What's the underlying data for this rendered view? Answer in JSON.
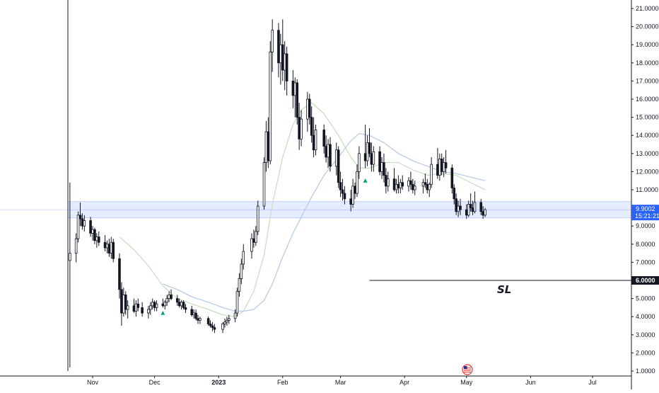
{
  "chart_data": {
    "type": "candlestick",
    "y_axis": {
      "ticks": [
        "21.0000",
        "20.0000",
        "19.0000",
        "18.0000",
        "17.0000",
        "16.0000",
        "15.0000",
        "14.0000",
        "13.0000",
        "12.0000",
        "11.0000",
        "9.0000",
        "8.0000",
        "7.0000",
        "5.0000",
        "4.0000",
        "3.0000",
        "2.0000",
        "1.0000"
      ],
      "tick_values": [
        21,
        20,
        19,
        18,
        17,
        16,
        15,
        14,
        13,
        12,
        11,
        9,
        8,
        7,
        5,
        4,
        3,
        2,
        1
      ],
      "range": [
        0.9,
        21.4
      ],
      "position": "right"
    },
    "x_axis": {
      "labels": [
        "Nov",
        "Dec",
        "2023",
        "Feb",
        "Mar",
        "Apr",
        "May",
        "Jun",
        "Jul"
      ],
      "bold_labels": [
        "2023"
      ],
      "dates": [
        "2022-11-01",
        "2022-12-01",
        "2023-01-01",
        "2023-02-01",
        "2023-03-01",
        "2023-04-01",
        "2023-05-01",
        "2023-06-01",
        "2023-07-01"
      ]
    },
    "last_price": {
      "value": 9.9002,
      "label": "9.9002",
      "countdown": "15:21:21",
      "color": "#2962ff"
    },
    "stop_loss": {
      "value": 6.0,
      "label": "6.0000",
      "text": "SL",
      "start_date": "2023-03-15",
      "color": "#131722"
    },
    "support_zone": {
      "from": 9.45,
      "to": 10.35,
      "color": "#2962ff"
    },
    "candles": [
      [
        "2022-10-21",
        7.1,
        11.4,
        1.2,
        7.5
      ],
      [
        "2022-10-24",
        7.5,
        8.6,
        7.0,
        8.3
      ],
      [
        "2022-10-25",
        8.3,
        9.8,
        8.1,
        9.6
      ],
      [
        "2022-10-26",
        9.6,
        10.3,
        9.0,
        9.4
      ],
      [
        "2022-10-27",
        9.4,
        9.7,
        8.8,
        9.0
      ],
      [
        "2022-10-28",
        9.0,
        9.6,
        8.7,
        9.3
      ],
      [
        "2022-10-31",
        9.3,
        9.5,
        8.4,
        8.6
      ],
      [
        "2022-11-01",
        8.6,
        9.0,
        8.2,
        8.8
      ],
      [
        "2022-11-02",
        8.8,
        8.9,
        8.0,
        8.2
      ],
      [
        "2022-11-03",
        8.2,
        8.6,
        7.8,
        8.4
      ],
      [
        "2022-11-04",
        8.4,
        8.7,
        7.9,
        8.1
      ],
      [
        "2022-11-07",
        8.1,
        8.5,
        7.6,
        7.8
      ],
      [
        "2022-11-08",
        7.8,
        8.2,
        7.5,
        8.0
      ],
      [
        "2022-11-09",
        8.0,
        8.3,
        7.3,
        7.5
      ],
      [
        "2022-11-10",
        7.5,
        8.4,
        7.2,
        8.1
      ],
      [
        "2022-11-11",
        8.1,
        8.3,
        7.0,
        7.2
      ],
      [
        "2022-11-14",
        7.2,
        7.5,
        5.0,
        5.5
      ],
      [
        "2022-11-15",
        5.5,
        5.9,
        3.5,
        4.2
      ],
      [
        "2022-11-16",
        4.2,
        5.6,
        4.0,
        5.2
      ],
      [
        "2022-11-17",
        5.2,
        5.4,
        4.1,
        4.4
      ],
      [
        "2022-11-18",
        4.4,
        4.9,
        3.9,
        4.6
      ],
      [
        "2022-11-21",
        4.6,
        5.0,
        4.2,
        4.3
      ],
      [
        "2022-11-22",
        4.3,
        4.9,
        4.0,
        4.7
      ],
      [
        "2022-11-23",
        4.7,
        5.0,
        4.3,
        4.5
      ],
      [
        "2022-11-25",
        4.5,
        4.8,
        4.0,
        4.2
      ],
      [
        "2022-11-28",
        4.2,
        4.6,
        3.9,
        4.4
      ],
      [
        "2022-11-29",
        4.4,
        4.8,
        4.1,
        4.6
      ],
      [
        "2022-11-30",
        4.6,
        5.0,
        4.4,
        4.8
      ],
      [
        "2022-12-01",
        4.8,
        4.9,
        4.3,
        4.5
      ],
      [
        "2022-12-02",
        4.5,
        4.9,
        4.3,
        4.7
      ],
      [
        "2022-12-05",
        4.7,
        5.0,
        4.5,
        4.6
      ],
      [
        "2022-12-06",
        4.6,
        4.9,
        4.4,
        4.8
      ],
      [
        "2022-12-07",
        4.8,
        5.2,
        4.6,
        5.0
      ],
      [
        "2022-12-08",
        5.0,
        5.4,
        4.8,
        5.2
      ],
      [
        "2022-12-09",
        5.2,
        5.5,
        4.9,
        5.0
      ],
      [
        "2022-12-12",
        5.0,
        5.2,
        4.6,
        4.8
      ],
      [
        "2022-12-13",
        4.8,
        5.0,
        4.5,
        4.6
      ],
      [
        "2022-12-14",
        4.6,
        4.9,
        4.4,
        4.8
      ],
      [
        "2022-12-15",
        4.8,
        4.9,
        4.4,
        4.5
      ],
      [
        "2022-12-16",
        4.5,
        4.7,
        4.2,
        4.4
      ],
      [
        "2022-12-19",
        4.4,
        4.6,
        4.0,
        4.1
      ],
      [
        "2022-12-20",
        4.1,
        4.4,
        3.9,
        4.2
      ],
      [
        "2022-12-21",
        4.2,
        4.4,
        3.8,
        3.9
      ],
      [
        "2022-12-22",
        3.9,
        4.1,
        3.6,
        3.8
      ],
      [
        "2022-12-23",
        3.8,
        4.0,
        3.6,
        3.9
      ],
      [
        "2022-12-27",
        3.9,
        4.0,
        3.5,
        3.6
      ],
      [
        "2022-12-28",
        3.6,
        3.8,
        3.4,
        3.5
      ],
      [
        "2022-12-29",
        3.5,
        3.7,
        3.2,
        3.4
      ],
      [
        "2022-12-30",
        3.4,
        3.6,
        3.1,
        3.3
      ],
      [
        "2023-01-03",
        3.3,
        3.7,
        3.1,
        3.6
      ],
      [
        "2023-01-04",
        3.6,
        3.9,
        3.4,
        3.7
      ],
      [
        "2023-01-05",
        3.7,
        4.0,
        3.5,
        3.8
      ],
      [
        "2023-01-06",
        3.8,
        4.1,
        3.6,
        3.9
      ],
      [
        "2023-01-09",
        3.9,
        4.4,
        3.7,
        4.2
      ],
      [
        "2023-01-10",
        4.2,
        5.6,
        4.0,
        5.4
      ],
      [
        "2023-01-11",
        5.4,
        6.4,
        5.1,
        6.1
      ],
      [
        "2023-01-12",
        6.1,
        7.2,
        5.8,
        6.9
      ],
      [
        "2023-01-13",
        6.9,
        8.0,
        6.6,
        7.6
      ],
      [
        "2023-01-17",
        7.6,
        8.6,
        7.2,
        8.3
      ],
      [
        "2023-01-18",
        8.3,
        8.8,
        7.8,
        8.1
      ],
      [
        "2023-01-19",
        8.1,
        9.0,
        7.9,
        8.7
      ],
      [
        "2023-01-20",
        8.7,
        10.4,
        8.5,
        10.1
      ],
      [
        "2023-01-23",
        10.1,
        12.8,
        9.9,
        12.5
      ],
      [
        "2023-01-24",
        12.5,
        14.8,
        12.0,
        14.2
      ],
      [
        "2023-01-25",
        14.2,
        15.0,
        12.2,
        12.6
      ],
      [
        "2023-01-26",
        12.6,
        19.2,
        12.4,
        18.6
      ],
      [
        "2023-01-27",
        18.6,
        20.4,
        17.5,
        19.8
      ],
      [
        "2023-01-30",
        19.8,
        20.2,
        17.2,
        18.0
      ],
      [
        "2023-01-31",
        18.0,
        19.6,
        16.8,
        19.0
      ],
      [
        "2023-02-01",
        19.0,
        20.4,
        17.0,
        17.6
      ],
      [
        "2023-02-02",
        17.6,
        19.2,
        16.5,
        18.5
      ],
      [
        "2023-02-03",
        18.5,
        18.9,
        16.2,
        17.0
      ],
      [
        "2023-02-06",
        17.0,
        17.6,
        15.5,
        16.2
      ],
      [
        "2023-02-07",
        16.2,
        17.2,
        15.0,
        16.9
      ],
      [
        "2023-02-08",
        16.9,
        17.1,
        14.6,
        15.0
      ],
      [
        "2023-02-09",
        15.0,
        15.8,
        13.2,
        13.8
      ],
      [
        "2023-02-10",
        13.8,
        15.4,
        13.4,
        14.9
      ],
      [
        "2023-02-13",
        14.9,
        16.4,
        14.2,
        16.0
      ],
      [
        "2023-02-14",
        16.0,
        16.3,
        14.6,
        15.0
      ],
      [
        "2023-02-15",
        15.0,
        15.6,
        13.6,
        14.0
      ],
      [
        "2023-02-16",
        14.0,
        15.0,
        12.8,
        13.2
      ],
      [
        "2023-02-17",
        13.2,
        14.6,
        12.9,
        14.3
      ],
      [
        "2023-02-21",
        14.3,
        14.6,
        13.0,
        13.4
      ],
      [
        "2023-02-22",
        13.4,
        14.0,
        12.5,
        12.8
      ],
      [
        "2023-02-23",
        12.8,
        13.8,
        12.2,
        13.5
      ],
      [
        "2023-02-24",
        13.5,
        13.9,
        12.0,
        12.3
      ],
      [
        "2023-02-27",
        12.3,
        13.6,
        11.8,
        13.2
      ],
      [
        "2023-02-28",
        13.2,
        13.4,
        11.1,
        11.4
      ],
      [
        "2023-03-01",
        11.4,
        12.0,
        10.6,
        11.0
      ],
      [
        "2023-03-02",
        11.0,
        11.6,
        10.4,
        10.8
      ],
      [
        "2023-03-03",
        10.8,
        11.2,
        10.2,
        10.5
      ],
      [
        "2023-03-06",
        10.5,
        11.0,
        9.8,
        10.2
      ],
      [
        "2023-03-07",
        10.2,
        11.6,
        10.0,
        11.2
      ],
      [
        "2023-03-08",
        11.2,
        11.4,
        10.5,
        10.8
      ],
      [
        "2023-03-09",
        10.8,
        12.4,
        10.6,
        12.0
      ],
      [
        "2023-03-10",
        12.0,
        13.4,
        11.6,
        13.0
      ],
      [
        "2023-03-13",
        13.0,
        14.6,
        12.2,
        12.6
      ],
      [
        "2023-03-14",
        12.6,
        14.0,
        12.3,
        13.6
      ],
      [
        "2023-03-15",
        13.6,
        14.4,
        12.8,
        13.0
      ],
      [
        "2023-03-16",
        13.0,
        13.6,
        12.0,
        12.4
      ],
      [
        "2023-03-17",
        12.4,
        13.4,
        12.0,
        13.1
      ],
      [
        "2023-03-20",
        13.1,
        13.4,
        11.8,
        12.0
      ],
      [
        "2023-03-21",
        12.0,
        12.8,
        11.6,
        12.5
      ],
      [
        "2023-03-22",
        12.5,
        13.0,
        11.4,
        11.8
      ],
      [
        "2023-03-23",
        11.8,
        12.2,
        10.8,
        11.2
      ],
      [
        "2023-03-24",
        11.2,
        12.0,
        10.9,
        11.6
      ],
      [
        "2023-03-27",
        11.6,
        12.2,
        10.9,
        11.0
      ],
      [
        "2023-03-28",
        11.0,
        11.6,
        10.8,
        11.3
      ],
      [
        "2023-03-29",
        11.3,
        11.8,
        10.8,
        11.1
      ],
      [
        "2023-03-30",
        11.1,
        11.6,
        10.8,
        11.4
      ],
      [
        "2023-03-31",
        11.4,
        11.8,
        11.0,
        11.2
      ],
      [
        "2023-04-03",
        11.2,
        11.7,
        10.9,
        11.5
      ],
      [
        "2023-04-04",
        11.5,
        12.0,
        11.0,
        11.3
      ],
      [
        "2023-04-05",
        11.3,
        11.6,
        10.8,
        11.0
      ],
      [
        "2023-04-06",
        11.0,
        11.5,
        10.7,
        11.2
      ],
      [
        "2023-04-10",
        11.2,
        11.6,
        10.8,
        11.4
      ],
      [
        "2023-04-11",
        11.4,
        11.9,
        11.1,
        11.3
      ],
      [
        "2023-04-12",
        11.3,
        11.6,
        10.8,
        11.0
      ],
      [
        "2023-04-13",
        11.0,
        11.4,
        10.6,
        11.3
      ],
      [
        "2023-04-14",
        11.3,
        12.8,
        11.1,
        12.4
      ],
      [
        "2023-04-17",
        12.4,
        13.3,
        11.6,
        11.8
      ],
      [
        "2023-04-18",
        11.8,
        13.0,
        11.5,
        12.7
      ],
      [
        "2023-04-19",
        12.7,
        13.0,
        11.8,
        12.0
      ],
      [
        "2023-04-20",
        12.0,
        12.8,
        11.7,
        12.5
      ],
      [
        "2023-04-21",
        12.5,
        13.2,
        11.9,
        12.2
      ],
      [
        "2023-04-24",
        12.2,
        12.4,
        10.8,
        11.1
      ],
      [
        "2023-04-25",
        11.1,
        11.3,
        10.2,
        10.5
      ],
      [
        "2023-04-26",
        10.5,
        10.8,
        9.6,
        9.8
      ],
      [
        "2023-04-27",
        9.8,
        10.4,
        9.5,
        10.1
      ],
      [
        "2023-04-28",
        10.1,
        10.5,
        9.6,
        9.9
      ],
      [
        "2023-05-01",
        9.9,
        10.2,
        9.4,
        9.6
      ],
      [
        "2023-05-02",
        9.6,
        10.4,
        9.5,
        10.2
      ],
      [
        "2023-05-03",
        10.2,
        10.8,
        9.8,
        10.0
      ],
      [
        "2023-05-04",
        10.0,
        10.4,
        9.6,
        9.8
      ],
      [
        "2023-05-05",
        9.8,
        10.9,
        9.7,
        10.3
      ],
      [
        "2023-05-08",
        10.3,
        10.5,
        9.6,
        9.8
      ],
      [
        "2023-05-09",
        9.8,
        10.1,
        9.4,
        9.6
      ],
      [
        "2023-05-10",
        9.6,
        10.0,
        9.5,
        9.9
      ]
    ],
    "moving_averages": [
      {
        "color": "#c8e0c0",
        "points": [
          [
            "2022-11-14",
            8.4
          ],
          [
            "2022-11-21",
            7.7
          ],
          [
            "2022-11-28",
            6.8
          ],
          [
            "2022-12-05",
            5.7
          ],
          [
            "2022-12-12",
            5.0
          ],
          [
            "2022-12-19",
            4.7
          ],
          [
            "2022-12-27",
            4.4
          ],
          [
            "2023-01-03",
            4.1
          ],
          [
            "2023-01-09",
            4.0
          ],
          [
            "2023-01-13",
            4.3
          ],
          [
            "2023-01-18",
            5.4
          ],
          [
            "2023-01-23",
            7.4
          ],
          [
            "2023-01-27",
            10.2
          ],
          [
            "2023-02-01",
            12.8
          ],
          [
            "2023-02-06",
            14.6
          ],
          [
            "2023-02-10",
            15.4
          ],
          [
            "2023-02-15",
            15.8
          ],
          [
            "2023-02-21",
            15.2
          ],
          [
            "2023-02-28",
            14.0
          ],
          [
            "2023-03-06",
            12.8
          ],
          [
            "2023-03-10",
            12.2
          ],
          [
            "2023-03-15",
            12.2
          ],
          [
            "2023-03-22",
            12.5
          ],
          [
            "2023-03-29",
            12.5
          ],
          [
            "2023-04-05",
            12.1
          ],
          [
            "2023-04-12",
            11.8
          ],
          [
            "2023-04-19",
            11.9
          ],
          [
            "2023-04-26",
            11.8
          ],
          [
            "2023-05-03",
            11.4
          ],
          [
            "2023-05-10",
            11.0
          ]
        ]
      },
      {
        "color": "#b8cce4",
        "points": [
          [
            "2022-12-05",
            5.8
          ],
          [
            "2022-12-12",
            5.5
          ],
          [
            "2022-12-19",
            5.1
          ],
          [
            "2022-12-27",
            4.8
          ],
          [
            "2023-01-03",
            4.5
          ],
          [
            "2023-01-09",
            4.3
          ],
          [
            "2023-01-13",
            4.3
          ],
          [
            "2023-01-18",
            4.4
          ],
          [
            "2023-01-23",
            4.9
          ],
          [
            "2023-01-27",
            5.8
          ],
          [
            "2023-02-01",
            7.3
          ],
          [
            "2023-02-06",
            8.6
          ],
          [
            "2023-02-10",
            9.5
          ],
          [
            "2023-02-15",
            10.6
          ],
          [
            "2023-02-21",
            11.8
          ],
          [
            "2023-02-28",
            12.8
          ],
          [
            "2023-03-06",
            13.7
          ],
          [
            "2023-03-10",
            14.1
          ],
          [
            "2023-03-15",
            14.0
          ],
          [
            "2023-03-22",
            13.6
          ],
          [
            "2023-03-29",
            13.0
          ],
          [
            "2023-04-05",
            12.6
          ],
          [
            "2023-04-12",
            12.3
          ],
          [
            "2023-04-19",
            12.0
          ],
          [
            "2023-04-26",
            11.9
          ],
          [
            "2023-05-03",
            11.7
          ],
          [
            "2023-05-10",
            11.5
          ]
        ]
      }
    ],
    "markers": [
      {
        "date": "2022-12-05",
        "value": 4.2,
        "color": "#089981"
      },
      {
        "date": "2023-03-13",
        "value": 11.5,
        "color": "#089981"
      }
    ],
    "event_icon": {
      "date": "2023-04-28",
      "label": "US-flag-icon"
    },
    "grid": false,
    "colors": {
      "up": "#131722",
      "down": "#131722",
      "axis": "#131722"
    }
  }
}
